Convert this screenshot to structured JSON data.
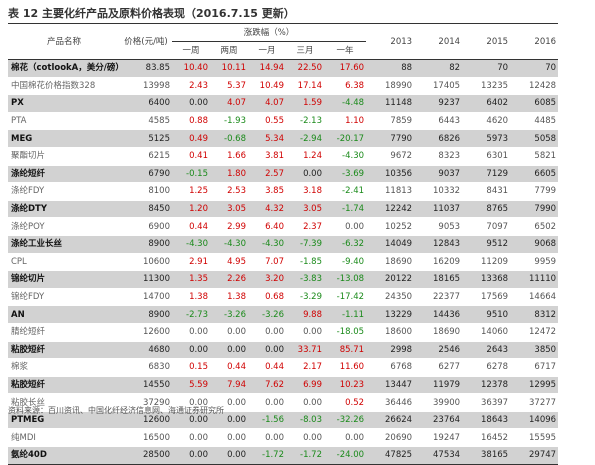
{
  "title": "表 12  主要化纤产品及原料价格表现（2016.7.15 更新）",
  "headers": {
    "name": "产品名称",
    "price": "价格(元/吨)",
    "change_group": "涨跌幅（%）",
    "periods": [
      "一周",
      "两周",
      "一月",
      "三月",
      "一年"
    ],
    "years": [
      "2013",
      "2014",
      "2015",
      "2016"
    ]
  },
  "chart_data": {
    "type": "table",
    "columns": [
      "产品名称",
      "价格(元/吨)",
      "一周",
      "两周",
      "一月",
      "三月",
      "一年",
      "2013",
      "2014",
      "2015",
      "2016"
    ],
    "rows": [
      {
        "name": "棉花（cotlookA，美分/磅）",
        "price": "83.85",
        "w1": "10.40",
        "w2": "10.11",
        "m1": "14.94",
        "m3": "22.50",
        "y1": "17.60",
        "y2013": "88",
        "y2014": "82",
        "y2015": "70",
        "y2016": "70",
        "style": "dark"
      },
      {
        "name": "中国棉花价格指数328",
        "price": "13998",
        "w1": "2.43",
        "w2": "5.37",
        "m1": "10.49",
        "m3": "17.14",
        "y1": "6.38",
        "y2013": "18990",
        "y2014": "17405",
        "y2015": "13235",
        "y2016": "12428",
        "style": "light"
      },
      {
        "name": "PX",
        "price": "6400",
        "w1": "0.00",
        "w2": "4.07",
        "m1": "4.07",
        "m3": "1.59",
        "y1": "-4.48",
        "y2013": "11148",
        "y2014": "9237",
        "y2015": "6402",
        "y2016": "6085",
        "style": "dark"
      },
      {
        "name": "PTA",
        "price": "4585",
        "w1": "0.88",
        "w2": "-1.93",
        "m1": "0.55",
        "m3": "-2.13",
        "y1": "1.10",
        "y2013": "7859",
        "y2014": "6443",
        "y2015": "4620",
        "y2016": "4485",
        "style": "light"
      },
      {
        "name": "MEG",
        "price": "5125",
        "w1": "0.49",
        "w2": "-0.68",
        "m1": "5.34",
        "m3": "-2.94",
        "y1": "-20.17",
        "y2013": "7790",
        "y2014": "6826",
        "y2015": "5973",
        "y2016": "5058",
        "style": "dark"
      },
      {
        "name": "聚酯切片",
        "price": "6215",
        "w1": "0.41",
        "w2": "1.66",
        "m1": "3.81",
        "m3": "1.24",
        "y1": "-4.30",
        "y2013": "9672",
        "y2014": "8323",
        "y2015": "6301",
        "y2016": "5821",
        "style": "light"
      },
      {
        "name": "涤纶短纤",
        "price": "6790",
        "w1": "-0.15",
        "w2": "1.80",
        "m1": "2.57",
        "m3": "0.00",
        "y1": "-3.69",
        "y2013": "10356",
        "y2014": "9037",
        "y2015": "7129",
        "y2016": "6605",
        "style": "dark"
      },
      {
        "name": "涤纶FDY",
        "price": "8100",
        "w1": "1.25",
        "w2": "2.53",
        "m1": "3.85",
        "m3": "3.18",
        "y1": "-2.41",
        "y2013": "11813",
        "y2014": "10332",
        "y2015": "8431",
        "y2016": "7799",
        "style": "light"
      },
      {
        "name": "涤纶DTY",
        "price": "8450",
        "w1": "1.20",
        "w2": "3.05",
        "m1": "4.32",
        "m3": "3.05",
        "y1": "-1.74",
        "y2013": "12242",
        "y2014": "11037",
        "y2015": "8765",
        "y2016": "7990",
        "style": "dark"
      },
      {
        "name": "涤纶POY",
        "price": "6900",
        "w1": "0.44",
        "w2": "2.99",
        "m1": "6.40",
        "m3": "2.37",
        "y1": "0.00",
        "y2013": "10252",
        "y2014": "9053",
        "y2015": "7097",
        "y2016": "6502",
        "style": "light"
      },
      {
        "name": "涤纶工业长丝",
        "price": "8900",
        "w1": "-4.30",
        "w2": "-4.30",
        "m1": "-4.30",
        "m3": "-7.39",
        "y1": "-6.32",
        "y2013": "14049",
        "y2014": "12843",
        "y2015": "9512",
        "y2016": "9068",
        "style": "dark"
      },
      {
        "name": "CPL",
        "price": "10600",
        "w1": "2.91",
        "w2": "4.95",
        "m1": "7.07",
        "m3": "-1.85",
        "y1": "-9.40",
        "y2013": "18690",
        "y2014": "16209",
        "y2015": "11209",
        "y2016": "9959",
        "style": "light"
      },
      {
        "name": "锦纶切片",
        "price": "11300",
        "w1": "1.35",
        "w2": "2.26",
        "m1": "3.20",
        "m3": "-3.83",
        "y1": "-13.08",
        "y2013": "20122",
        "y2014": "18165",
        "y2015": "13368",
        "y2016": "11110",
        "style": "dark"
      },
      {
        "name": "锦纶FDY",
        "price": "14700",
        "w1": "1.38",
        "w2": "1.38",
        "m1": "0.68",
        "m3": "-3.29",
        "y1": "-17.42",
        "y2013": "24350",
        "y2014": "22377",
        "y2015": "17569",
        "y2016": "14664",
        "style": "light"
      },
      {
        "name": "AN",
        "price": "8900",
        "w1": "-2.73",
        "w2": "-3.26",
        "m1": "-3.26",
        "m3": "9.88",
        "y1": "-1.11",
        "y2013": "13229",
        "y2014": "14436",
        "y2015": "9510",
        "y2016": "8312",
        "style": "dark"
      },
      {
        "name": "腈纶短纤",
        "price": "12600",
        "w1": "0.00",
        "w2": "0.00",
        "m1": "0.00",
        "m3": "0.00",
        "y1": "-18.05",
        "y2013": "18600",
        "y2014": "18690",
        "y2015": "14060",
        "y2016": "12472",
        "style": "light"
      },
      {
        "name": "粘胶短纤",
        "price": "4680",
        "w1": "0.00",
        "w2": "0.00",
        "m1": "0.00",
        "m3": "33.71",
        "y1": "85.71",
        "y2013": "2998",
        "y2014": "2546",
        "y2015": "2643",
        "y2016": "3850",
        "style": "dark"
      },
      {
        "name": "棉浆",
        "price": "6830",
        "w1": "0.15",
        "w2": "0.44",
        "m1": "0.44",
        "m3": "2.17",
        "y1": "11.60",
        "y2013": "6768",
        "y2014": "6277",
        "y2015": "6278",
        "y2016": "6717",
        "style": "light"
      },
      {
        "name": "粘胶短纤",
        "price": "14550",
        "w1": "5.59",
        "w2": "7.94",
        "m1": "7.62",
        "m3": "6.99",
        "y1": "10.23",
        "y2013": "13447",
        "y2014": "11979",
        "y2015": "12378",
        "y2016": "12995",
        "style": "dark"
      },
      {
        "name": "粘胶长丝",
        "price": "37290",
        "w1": "0.00",
        "w2": "0.00",
        "m1": "0.00",
        "m3": "0.00",
        "y1": "0.52",
        "y2013": "36446",
        "y2014": "39900",
        "y2015": "36397",
        "y2016": "37277",
        "style": "light"
      },
      {
        "name": "PTMEG",
        "price": "12600",
        "w1": "0.00",
        "w2": "0.00",
        "m1": "-1.56",
        "m3": "-8.03",
        "y1": "-32.26",
        "y2013": "26624",
        "y2014": "23764",
        "y2015": "18643",
        "y2016": "14096",
        "style": "dark"
      },
      {
        "name": "纯MDI",
        "price": "16500",
        "w1": "0.00",
        "w2": "0.00",
        "m1": "0.00",
        "m3": "0.00",
        "y1": "0.00",
        "y2013": "20690",
        "y2014": "19247",
        "y2015": "16452",
        "y2016": "15595",
        "style": "light"
      },
      {
        "name": "氨纶40D",
        "price": "28500",
        "w1": "0.00",
        "w2": "0.00",
        "m1": "-1.72",
        "m3": "-1.72",
        "y1": "-24.00",
        "y2013": "47825",
        "y2014": "47534",
        "y2015": "38165",
        "y2016": "29747",
        "style": "dark"
      }
    ]
  },
  "colors": {
    "positive": "#d00000",
    "negative": "#1a8a1a",
    "dark_row": "#d2d2d2"
  },
  "source": "资料来源：百川资讯、中国化纤经济信息网、海通证券研究所"
}
